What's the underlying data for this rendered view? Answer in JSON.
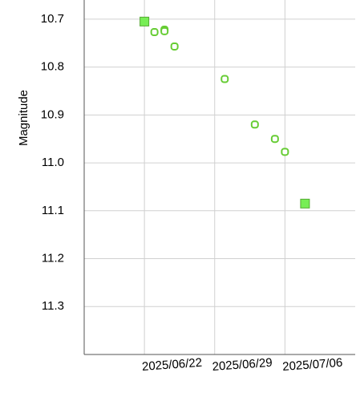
{
  "chart_data": {
    "type": "scatter",
    "y_label": "Magnitude",
    "xlim": [
      "2025/06/16",
      "2025/07/13"
    ],
    "xticks": [
      "2025/06/22",
      "2025/06/29",
      "2025/07/06"
    ],
    "ylim": [
      10.66,
      11.4
    ],
    "y_inverted": true,
    "yticks": [
      10.7,
      10.8,
      10.9,
      {
        "value": 11.0,
        "label": "11.0"
      },
      11.1,
      11.2,
      11.3
    ],
    "grid": true,
    "series": [
      {
        "marker": "filled-square",
        "color": "#77ee55",
        "x": [
          "2025/06/22",
          "2025/07/08"
        ],
        "values": [
          10.705,
          11.085
        ]
      },
      {
        "marker": "open-square",
        "color": "#66cc33",
        "x": [
          "2025/06/23",
          "2025/06/24",
          "2025/06/24",
          "2025/06/25",
          "2025/06/30",
          "2025/07/03",
          "2025/07/05",
          "2025/07/06"
        ],
        "values": [
          10.727,
          10.722,
          10.725,
          10.757,
          10.825,
          10.92,
          10.95,
          10.977
        ]
      }
    ]
  }
}
